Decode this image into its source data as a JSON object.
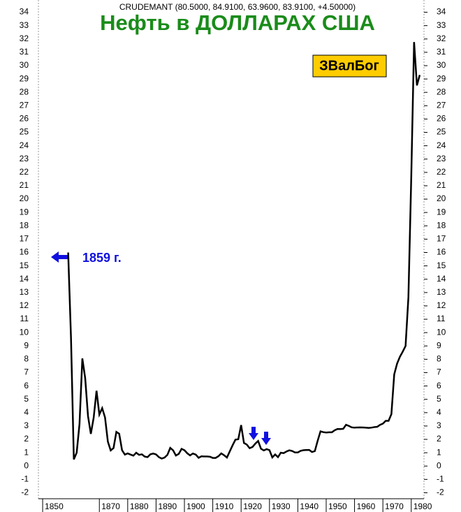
{
  "chart_data": {
    "type": "line",
    "title": "Нефть в ДОЛЛАРАХ США",
    "subtitle": "CRUDEMANT (80.5000, 84.9100, 63.9600, 83.9100, +4.50000)",
    "badge": "ЗВалБог",
    "annotation": "1859 г.",
    "x": [
      1859,
      1860,
      1861,
      1862,
      1863,
      1864,
      1865,
      1866,
      1867,
      1868,
      1869,
      1870,
      1871,
      1872,
      1873,
      1874,
      1875,
      1876,
      1877,
      1878,
      1879,
      1880,
      1881,
      1882,
      1883,
      1884,
      1885,
      1886,
      1887,
      1888,
      1889,
      1890,
      1891,
      1892,
      1893,
      1894,
      1895,
      1896,
      1897,
      1898,
      1899,
      1900,
      1901,
      1902,
      1903,
      1904,
      1905,
      1906,
      1907,
      1908,
      1909,
      1910,
      1911,
      1912,
      1913,
      1914,
      1915,
      1916,
      1917,
      1918,
      1919,
      1920,
      1921,
      1922,
      1923,
      1924,
      1925,
      1926,
      1927,
      1928,
      1929,
      1930,
      1931,
      1932,
      1933,
      1934,
      1935,
      1936,
      1937,
      1938,
      1939,
      1940,
      1941,
      1942,
      1943,
      1944,
      1945,
      1946,
      1947,
      1948,
      1949,
      1950,
      1951,
      1952,
      1953,
      1954,
      1955,
      1956,
      1957,
      1958,
      1959,
      1960,
      1961,
      1962,
      1963,
      1964,
      1965,
      1966,
      1967,
      1968,
      1969,
      1970,
      1971,
      1972,
      1973,
      1974,
      1975,
      1976,
      1977,
      1978,
      1979,
      1980,
      1981,
      1982,
      1983
    ],
    "series": [
      {
        "name": "CRUDEMANT",
        "color": "#000000",
        "values": [
          16,
          9.6,
          0.5,
          1.0,
          3.15,
          8.06,
          6.59,
          3.74,
          2.41,
          3.63,
          5.64,
          3.86,
          4.34,
          3.64,
          1.83,
          1.17,
          1.35,
          2.56,
          2.42,
          1.19,
          0.86,
          0.95,
          0.86,
          0.78,
          1.0,
          0.84,
          0.88,
          0.71,
          0.67,
          0.88,
          0.94,
          0.87,
          0.67,
          0.56,
          0.64,
          0.84,
          1.36,
          1.18,
          0.79,
          0.91,
          1.29,
          1.19,
          0.96,
          0.8,
          0.94,
          0.86,
          0.62,
          0.73,
          0.72,
          0.72,
          0.7,
          0.61,
          0.61,
          0.74,
          0.95,
          0.81,
          0.64,
          1.1,
          1.56,
          1.98,
          2.01,
          3.07,
          1.73,
          1.61,
          1.34,
          1.43,
          1.68,
          1.88,
          1.3,
          1.17,
          1.27,
          1.19,
          0.65,
          0.87,
          0.67,
          1.0,
          0.97,
          1.09,
          1.18,
          1.13,
          1.02,
          1.02,
          1.14,
          1.19,
          1.2,
          1.21,
          1.05,
          1.12,
          1.9,
          2.6,
          2.54,
          2.51,
          2.53,
          2.53,
          2.68,
          2.78,
          2.77,
          2.79,
          3.09,
          3.01,
          2.9,
          2.88,
          2.89,
          2.9,
          2.89,
          2.88,
          2.86,
          2.88,
          2.92,
          2.94,
          3.09,
          3.18,
          3.39,
          3.39,
          3.89,
          6.87,
          7.67,
          8.19,
          8.57,
          9.0,
          12.64,
          21.59,
          31.77,
          28.52,
          29.3
        ]
      }
    ],
    "xlim": [
      1849,
      1984
    ],
    "xticks": [
      1850,
      1870,
      1880,
      1890,
      1900,
      1910,
      1920,
      1930,
      1940,
      1950,
      1960,
      1970,
      1980
    ],
    "ylim": [
      -2.5,
      34.5
    ],
    "yticks": [
      -2,
      -1,
      0,
      1,
      2,
      3,
      4,
      5,
      6,
      7,
      8,
      9,
      10,
      11,
      12,
      13,
      14,
      15,
      16,
      17,
      18,
      19,
      20,
      21,
      22,
      23,
      24,
      25,
      26,
      27,
      28,
      29,
      30,
      31,
      32,
      33,
      34
    ],
    "grid": false
  }
}
